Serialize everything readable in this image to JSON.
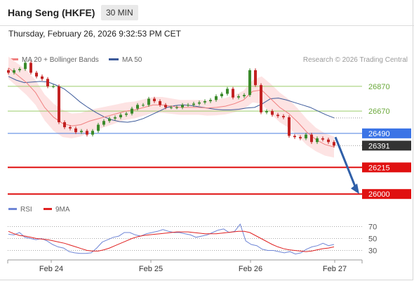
{
  "header": {
    "symbol": "Hang Seng (HKFE)",
    "timeframe": "30 MIN",
    "datetime": "Thursday, February 26, 2026 9:32:53 PM CET"
  },
  "legend": {
    "ma20_label": "MA 20 + Bollinger Bands",
    "ma50_label": "MA 50",
    "rsi_label": "RSI",
    "ma9_label": "9MA",
    "credit": "Research © 2026 Trading Central"
  },
  "colors": {
    "ma20": "#f08080",
    "ma50": "#3c5a9a",
    "bollinger_fill": "#fde3e3",
    "support": "#e01010",
    "pivot": "#4a7fe0",
    "resistance": "#9ccc6a",
    "candle_up": "#3a8a2a",
    "candle_down": "#c22222",
    "rsi": "#6f86d6",
    "rsi_ma": "#e02020"
  },
  "chart_data": [
    {
      "type": "candlestick",
      "title": "Hang Seng (HKFE) 30 MIN",
      "x_labels": [
        "Feb 24",
        "Feb 25",
        "Feb 26",
        "Feb 27"
      ],
      "ylim": [
        25950,
        27000
      ],
      "levels": [
        {
          "value": 26870,
          "label": "26870",
          "kind": "resistance"
        },
        {
          "value": 26670,
          "label": "26670",
          "kind": "resistance"
        },
        {
          "value": 26490,
          "label": "26490",
          "kind": "pivot"
        },
        {
          "value": 26215,
          "label": "26215",
          "kind": "support"
        },
        {
          "value": 26000,
          "label": "26000",
          "kind": "support"
        }
      ],
      "last_price": {
        "value": 26391,
        "label": "26391"
      },
      "series": [
        {
          "name": "MA 20 + Bollinger Bands"
        },
        {
          "name": "MA 50"
        }
      ],
      "ma50_values": [
        26950,
        26920,
        26900,
        26905,
        26910,
        26905,
        26880,
        26850,
        26800,
        26745,
        26700,
        26660,
        26625,
        26600,
        26585,
        26580,
        26590,
        26610,
        26640,
        26670,
        26700,
        26715,
        26720,
        26715,
        26705,
        26695,
        26685,
        26680,
        26680,
        26685,
        26695,
        26700,
        26730,
        26770,
        26775,
        26760,
        26740,
        26720,
        26700,
        26670,
        26640,
        26615
      ],
      "ma20_values": [
        27020,
        26960,
        26900,
        26820,
        26700,
        26620,
        26570,
        26550,
        26560,
        26590,
        26610,
        26630,
        26650,
        26670,
        26680,
        26700,
        26720,
        26720,
        26710,
        26700,
        26700,
        26700,
        26695,
        26700,
        26710,
        26730,
        26760,
        26830,
        26840,
        26770,
        26700,
        26650,
        26580,
        26500,
        26440,
        26400,
        26380
      ],
      "close": [
        26980,
        27000,
        27010,
        27060,
        26980,
        26950,
        26930,
        26870,
        26870,
        26580,
        26540,
        26530,
        26500,
        26510,
        26480,
        26510,
        26560,
        26590,
        26610,
        26620,
        26640,
        26650,
        26690,
        26720,
        26720,
        26770,
        26750,
        26720,
        26700,
        26700,
        26700,
        26720,
        26720,
        26730,
        26740,
        26750,
        26760,
        26790,
        26810,
        26850,
        26780,
        26790,
        26800,
        27000,
        26880,
        26660,
        26670,
        26640,
        26630,
        26620,
        26470,
        26460,
        26450,
        26480,
        26420,
        26450,
        26440,
        26420,
        26391
      ],
      "arrow": {
        "from": 26460,
        "to": 26000
      }
    },
    {
      "type": "line",
      "title": "RSI",
      "ylim": [
        20,
        80
      ],
      "ticks": [
        70,
        50,
        30
      ],
      "tick_labels": [
        "70",
        "50",
        "30"
      ],
      "series": [
        {
          "name": "RSI",
          "values": [
            57,
            56,
            60,
            52,
            50,
            48,
            50,
            46,
            40,
            36,
            34,
            28,
            26,
            25,
            25,
            26,
            34,
            44,
            48,
            52,
            54,
            60,
            60,
            56,
            54,
            58,
            60,
            62,
            65,
            62,
            60,
            60,
            58,
            56,
            52,
            54,
            56,
            60,
            64,
            66,
            60,
            62,
            74,
            46,
            40,
            38,
            32,
            30,
            30,
            28,
            26,
            28,
            24,
            26,
            32,
            36,
            38,
            42,
            38,
            40
          ]
        },
        {
          "name": "9MA",
          "values": [
            62,
            58,
            55,
            54,
            52,
            50,
            49,
            48,
            46,
            44,
            42,
            39,
            36,
            33,
            30,
            29,
            29,
            31,
            34,
            38,
            42,
            46,
            50,
            53,
            55,
            56,
            57,
            58,
            59,
            60,
            61,
            61,
            61,
            60,
            59,
            58,
            58,
            58,
            59,
            60,
            61,
            62,
            62,
            60,
            55,
            50,
            45,
            40,
            36,
            33,
            31,
            30,
            29,
            28,
            29,
            31,
            33,
            34,
            36
          ]
        }
      ]
    }
  ]
}
